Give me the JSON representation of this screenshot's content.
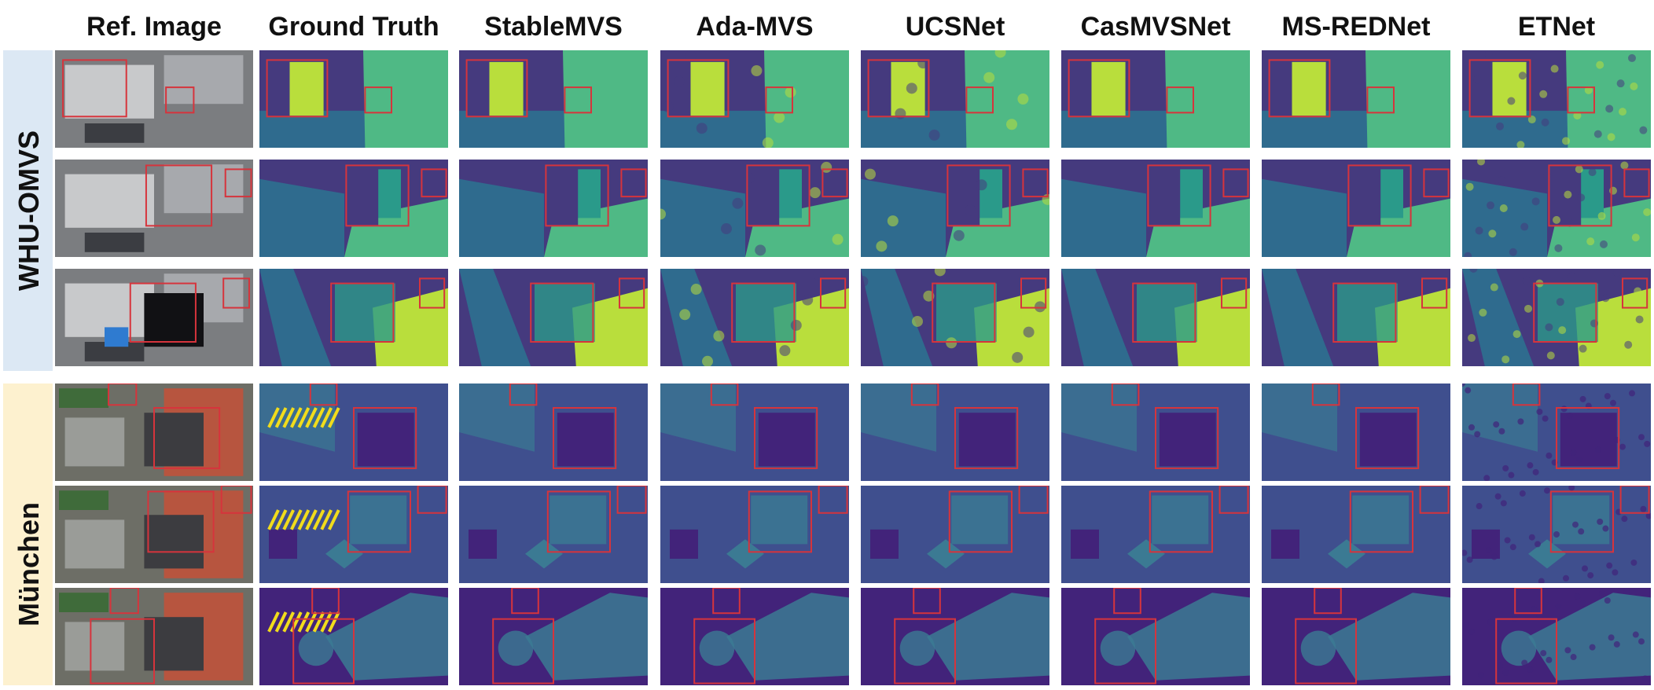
{
  "columns": [
    "Ref. Image",
    "Ground Truth",
    "StableMVS",
    "Ada-MVS",
    "UCSNet",
    "CasMVSNet",
    "MS-REDNet",
    "ETNet"
  ],
  "groups": [
    {
      "label": "WHU-OMVS",
      "color": "#dce8f4"
    },
    {
      "label": "München",
      "color": "#fdf1cf"
    }
  ],
  "palette": {
    "whu_dark": "#453a7e",
    "whu_mid": "#2f6b8e",
    "whu_teal": "#2a9a8a",
    "whu_green": "#4fb985",
    "whu_yellow": "#b9de3c",
    "mun_bg": "#3f4f8e",
    "mun_purple": "#42237a",
    "mun_teal": "#3b7a93",
    "gt_yellow": "#f1dc1c",
    "box_red": "#d6343c"
  }
}
